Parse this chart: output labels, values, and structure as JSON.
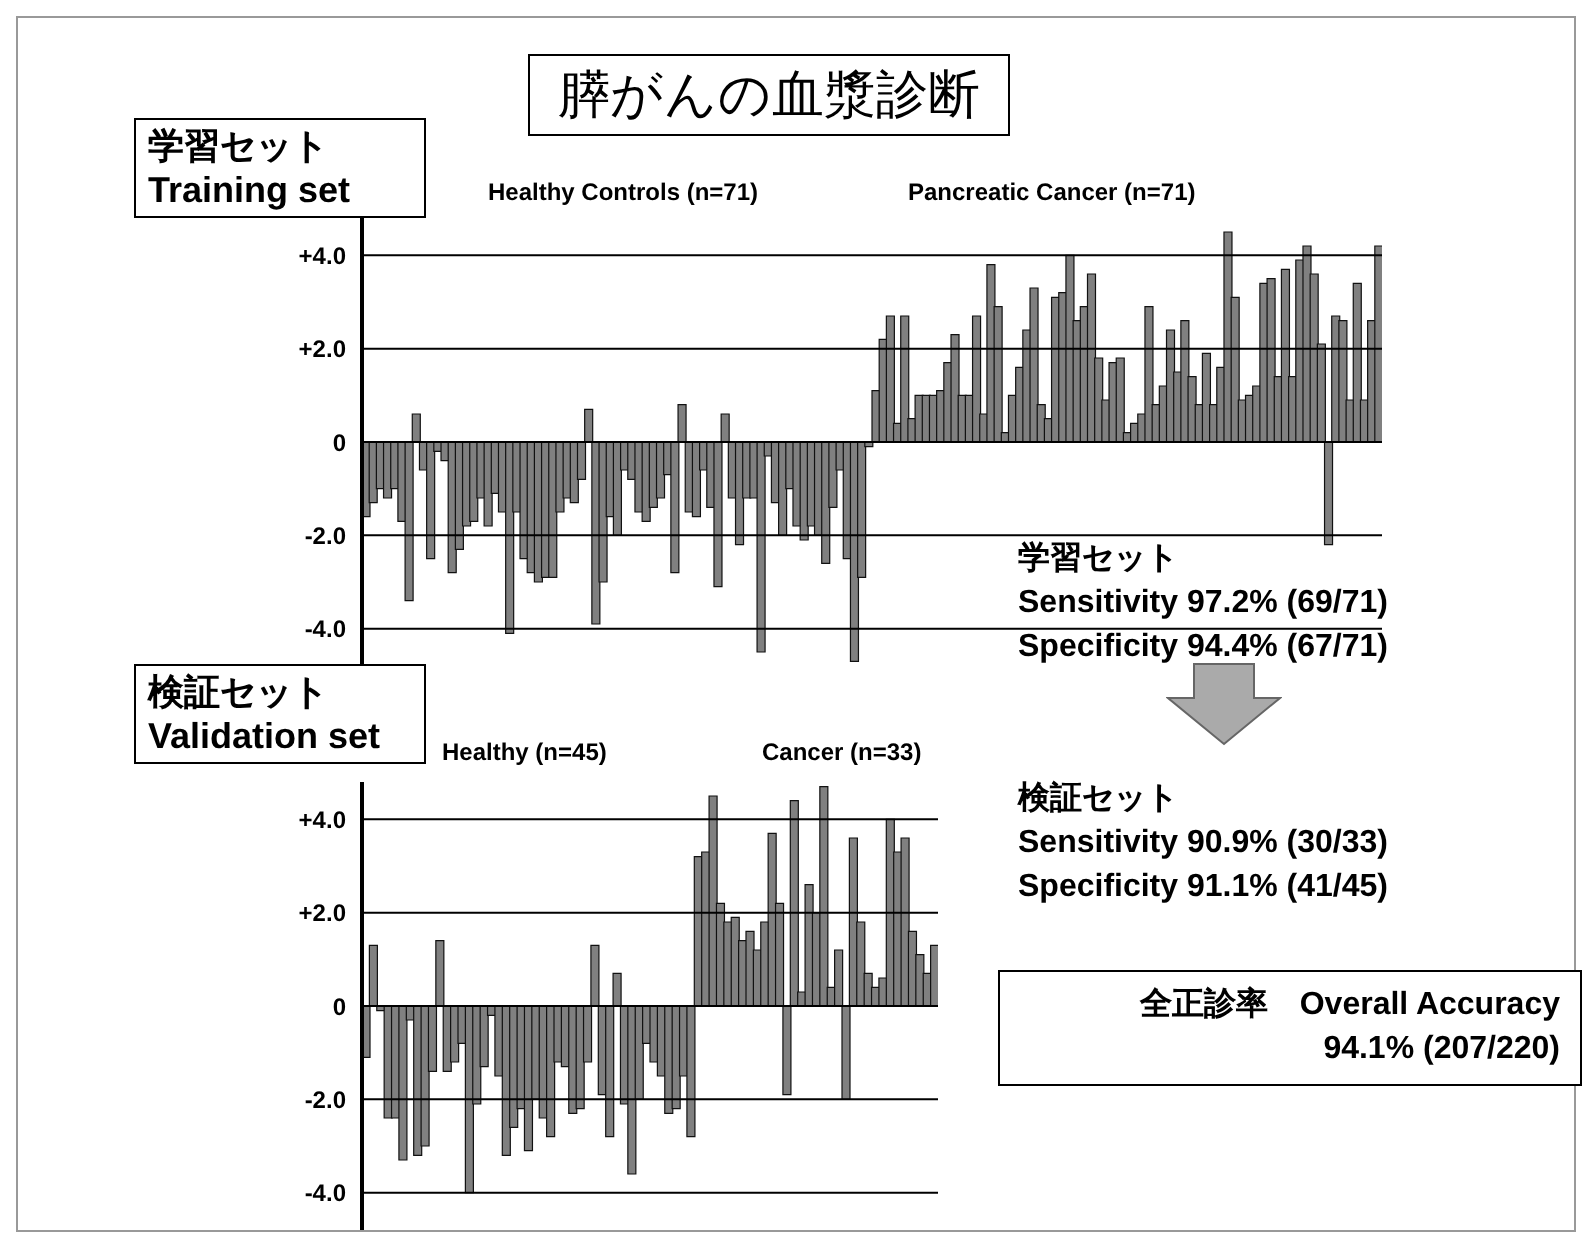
{
  "chart_data": [
    {
      "type": "bar",
      "title": "膵がんの血漿診断",
      "subtitle": "学習セット\nTraining set",
      "categories": [
        null,
        null,
        null,
        null,
        null,
        null,
        null,
        null,
        null,
        null,
        null,
        null,
        null,
        null,
        null,
        null,
        null,
        null,
        null,
        null,
        null,
        null,
        null,
        null,
        null,
        null,
        null,
        null,
        null,
        null,
        null,
        null,
        null,
        null,
        null,
        null,
        null,
        null,
        null,
        null,
        null,
        null,
        null,
        null,
        null,
        null,
        null,
        null,
        null,
        null,
        null,
        null,
        null,
        null,
        null,
        null,
        null,
        null,
        null,
        null,
        null,
        null,
        null,
        null,
        null,
        null,
        null,
        null,
        null,
        null,
        null,
        null,
        null,
        null,
        null,
        null,
        null,
        null,
        null,
        null,
        null,
        null,
        null,
        null,
        null,
        null,
        null,
        null,
        null,
        null,
        null,
        null,
        null,
        null,
        null,
        null,
        null,
        null,
        null,
        null,
        null,
        null,
        null,
        null,
        null,
        null,
        null,
        null,
        null,
        null,
        null,
        null,
        null,
        null,
        null,
        null,
        null,
        null,
        null,
        null,
        null,
        null,
        null,
        null,
        null,
        null,
        null,
        null,
        null,
        null,
        null,
        null,
        null,
        null,
        null,
        null,
        null,
        null,
        null,
        null,
        null,
        null
      ],
      "values": [
        -1.6,
        -1.3,
        -1.0,
        -1.2,
        -1.0,
        -1.7,
        -3.4,
        0.6,
        -0.6,
        -2.5,
        -0.2,
        -0.4,
        -2.8,
        -2.3,
        -1.8,
        -1.7,
        -1.2,
        -1.8,
        -1.1,
        -1.5,
        -4.1,
        -1.5,
        -2.5,
        -2.8,
        -3.0,
        -2.9,
        -2.9,
        -1.5,
        -1.2,
        -1.3,
        -0.8,
        0.7,
        -3.9,
        -3.0,
        -1.6,
        -2.0,
        -0.6,
        -0.8,
        -1.5,
        -1.7,
        -1.4,
        -1.2,
        -0.7,
        -2.8,
        0.8,
        -1.5,
        -1.6,
        -0.6,
        -1.4,
        -3.1,
        0.6,
        -1.2,
        -2.2,
        -1.2,
        -1.2,
        -4.5,
        -0.3,
        -1.3,
        -2.0,
        -1.0,
        -1.8,
        -2.1,
        -1.8,
        -2.0,
        -2.6,
        -1.4,
        -0.6,
        -2.5,
        -4.7,
        -2.9,
        -0.1,
        1.1,
        2.2,
        2.7,
        0.4,
        2.7,
        0.5,
        1.0,
        1.0,
        1.0,
        1.1,
        1.7,
        2.3,
        1.0,
        1.0,
        2.7,
        0.6,
        3.8,
        2.9,
        0.2,
        1.0,
        1.6,
        2.4,
        3.3,
        0.8,
        0.5,
        3.1,
        3.2,
        4.0,
        2.6,
        2.9,
        3.6,
        1.8,
        0.9,
        1.7,
        1.8,
        0.2,
        0.4,
        0.6,
        2.9,
        0.8,
        1.2,
        2.4,
        1.5,
        2.6,
        1.4,
        0.8,
        1.9,
        0.8,
        1.6,
        4.5,
        3.1,
        0.9,
        1.0,
        1.2,
        3.4,
        3.5,
        1.4,
        3.7,
        1.4,
        3.9,
        4.2,
        3.6,
        2.1,
        -2.2,
        2.7,
        2.6,
        0.9,
        3.4,
        0.9,
        2.6,
        4.2
      ],
      "color": "#808080",
      "ylim": [
        -4.8,
        4.8
      ],
      "yticks": [
        {
          "value": -4,
          "label": "-4.0"
        },
        {
          "value": -2,
          "label": "-2.0"
        },
        0,
        {
          "value": 2,
          "label": "+2.0"
        },
        {
          "value": 4,
          "label": "+4.0"
        }
      ],
      "tick_labels": "y",
      "grid": "y",
      "annotations": [
        "Healthy Controls (n=71)",
        "Pancreatic Cancer (n=71)",
        "学習セット\nSensitivity 97.2% (69/71)\nSpecificity 94.4% (67/71)"
      ]
    },
    {
      "type": "bar",
      "subtitle": "検証セット\nValidation set",
      "categories": [
        null,
        null,
        null,
        null,
        null,
        null,
        null,
        null,
        null,
        null,
        null,
        null,
        null,
        null,
        null,
        null,
        null,
        null,
        null,
        null,
        null,
        null,
        null,
        null,
        null,
        null,
        null,
        null,
        null,
        null,
        null,
        null,
        null,
        null,
        null,
        null,
        null,
        null,
        null,
        null,
        null,
        null,
        null,
        null,
        null,
        null,
        null,
        null,
        null,
        null,
        null,
        null,
        null,
        null,
        null,
        null,
        null,
        null,
        null,
        null,
        null,
        null,
        null,
        null,
        null,
        null,
        null,
        null,
        null,
        null,
        null,
        null,
        null,
        null,
        null,
        null,
        null,
        null
      ],
      "values": [
        -1.1,
        1.3,
        -0.1,
        -2.4,
        -2.4,
        -3.3,
        -0.3,
        -3.2,
        -3.0,
        -1.4,
        1.4,
        -1.4,
        -1.2,
        -0.8,
        -4.0,
        -2.1,
        -1.3,
        -0.2,
        -1.5,
        -3.2,
        -2.6,
        -2.2,
        -3.1,
        -2.0,
        -2.4,
        -2.8,
        -1.2,
        -1.3,
        -2.3,
        -2.2,
        -1.2,
        1.3,
        -1.9,
        -2.8,
        0.7,
        -2.1,
        -3.6,
        -2.0,
        -0.8,
        -1.2,
        -1.5,
        -2.3,
        -2.2,
        -1.5,
        -2.8,
        3.2,
        3.3,
        4.5,
        2.2,
        1.8,
        1.9,
        1.4,
        1.6,
        1.2,
        1.8,
        3.7,
        2.2,
        -1.9,
        4.4,
        0.3,
        2.6,
        2.0,
        4.7,
        0.4,
        1.2,
        -2.0,
        3.6,
        1.8,
        0.7,
        0.4,
        0.6,
        4.0,
        3.3,
        3.6,
        1.6,
        1.1,
        0.7,
        1.3
      ],
      "color": "#808080",
      "ylim": [
        -4.8,
        4.8
      ],
      "yticks": [
        {
          "value": -4,
          "label": "-4.0"
        },
        {
          "value": -2,
          "label": "-2.0"
        },
        0,
        {
          "value": 2,
          "label": "+2.0"
        },
        {
          "value": 4,
          "label": "+4.0"
        }
      ],
      "tick_labels": "y",
      "grid": "y",
      "annotations": [
        "Healthy (n=45)",
        "Cancer (n=33)",
        "検証セット\nSensitivity 90.9% (30/33)\nSpecificity 91.1% (41/45)",
        "全正診率　Overall Accuracy\n94.1% (207/220)"
      ]
    }
  ]
}
